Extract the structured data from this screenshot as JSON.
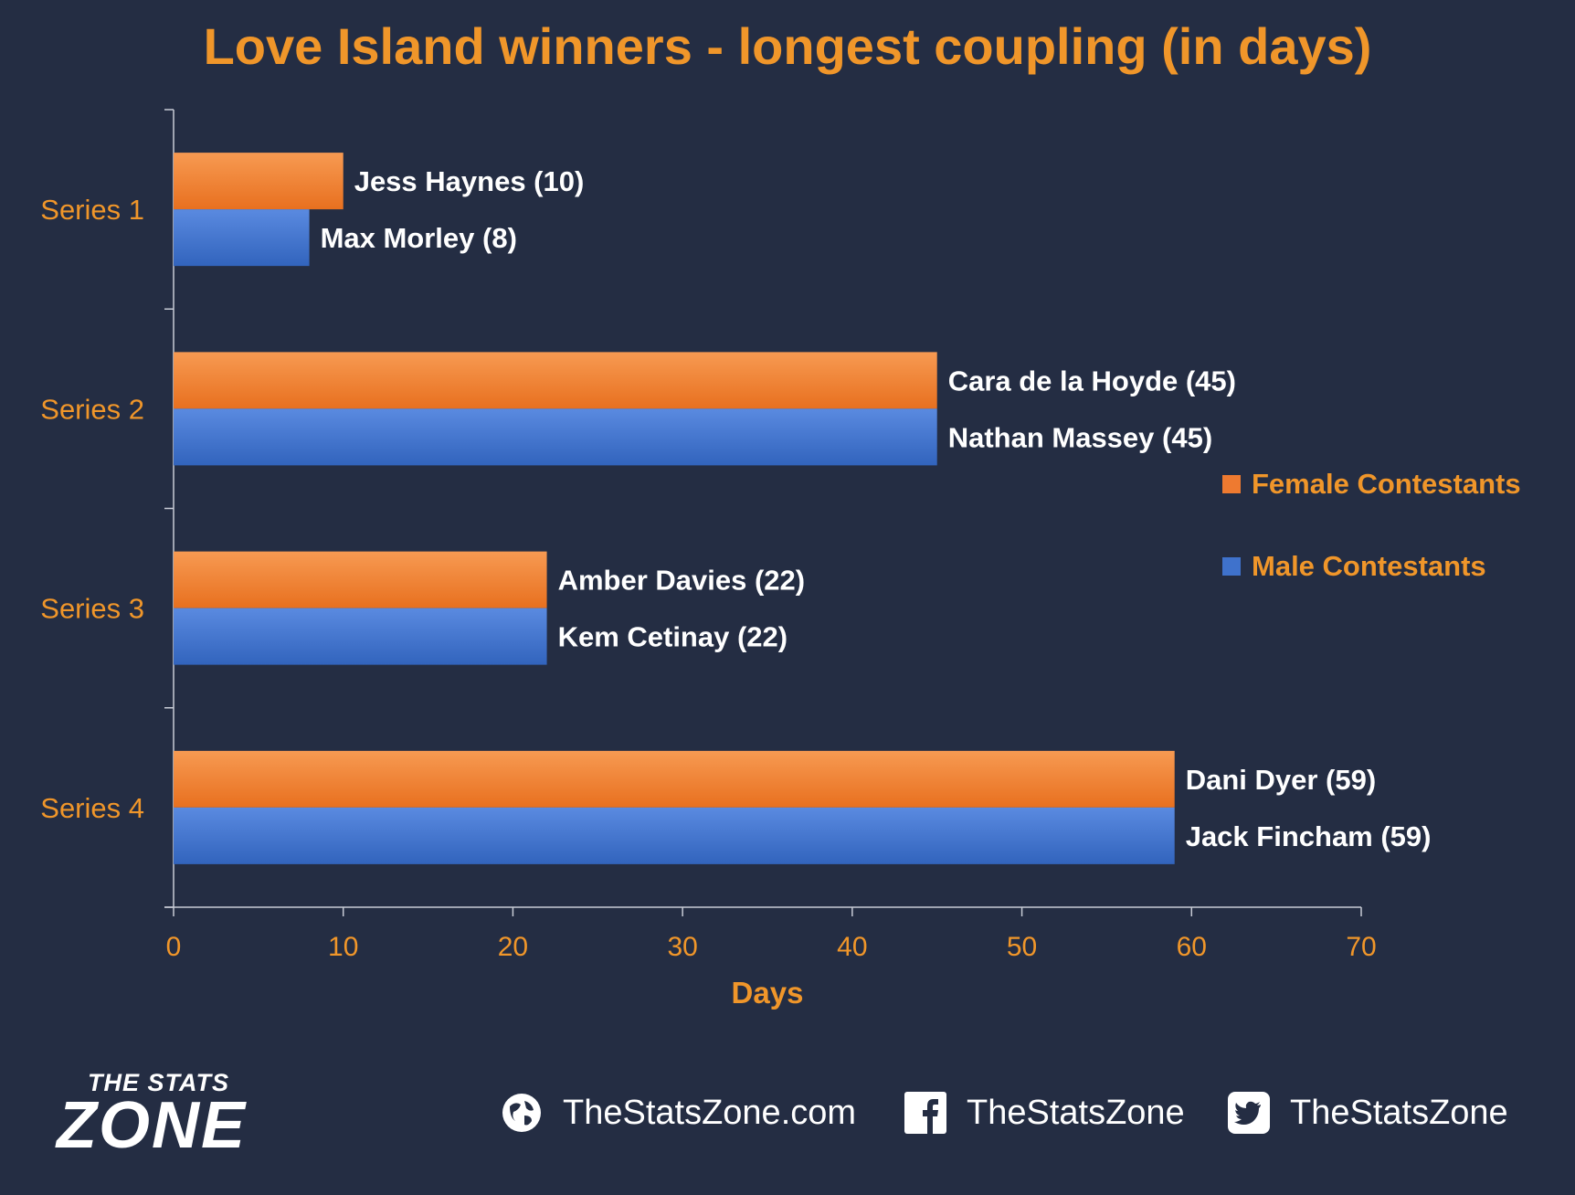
{
  "title": "Love Island winners - longest coupling (in days)",
  "colors": {
    "background": "#242d43",
    "accent": "#f0962a",
    "female": "#ee7a30",
    "male": "#3f72cc"
  },
  "legend": {
    "female": "Female Contestants",
    "male": "Male Contestants"
  },
  "footer": {
    "brand_top": "THE STATS",
    "brand_main": "ZONE",
    "website": "TheStatsZone.com",
    "facebook": "TheStatsZone",
    "twitter": "TheStatsZone",
    "icons": [
      "globe-icon",
      "facebook-icon",
      "twitter-icon"
    ]
  },
  "chart_data": {
    "type": "bar",
    "orientation": "horizontal",
    "title": "Love Island winners - longest coupling (in days)",
    "xlabel": "Days",
    "ylabel": "",
    "xlim": [
      0,
      70
    ],
    "xticks": [
      0,
      10,
      20,
      30,
      40,
      50,
      60,
      70
    ],
    "categories": [
      "Series 1",
      "Series 2",
      "Series 3",
      "Series 4"
    ],
    "series": [
      {
        "name": "Female Contestants",
        "values": [
          10,
          45,
          22,
          59
        ],
        "labels": [
          "Jess Haynes (10)",
          "Cara de la Hoyde (45)",
          "Amber Davies (22)",
          "Dani Dyer (59)"
        ]
      },
      {
        "name": "Male Contestants",
        "values": [
          8,
          45,
          22,
          59
        ],
        "labels": [
          "Max Morley (8)",
          "Nathan Massey (45)",
          "Kem Cetinay (22)",
          "Jack Fincham (59)"
        ]
      }
    ],
    "grid": false,
    "legend_position": "right"
  }
}
